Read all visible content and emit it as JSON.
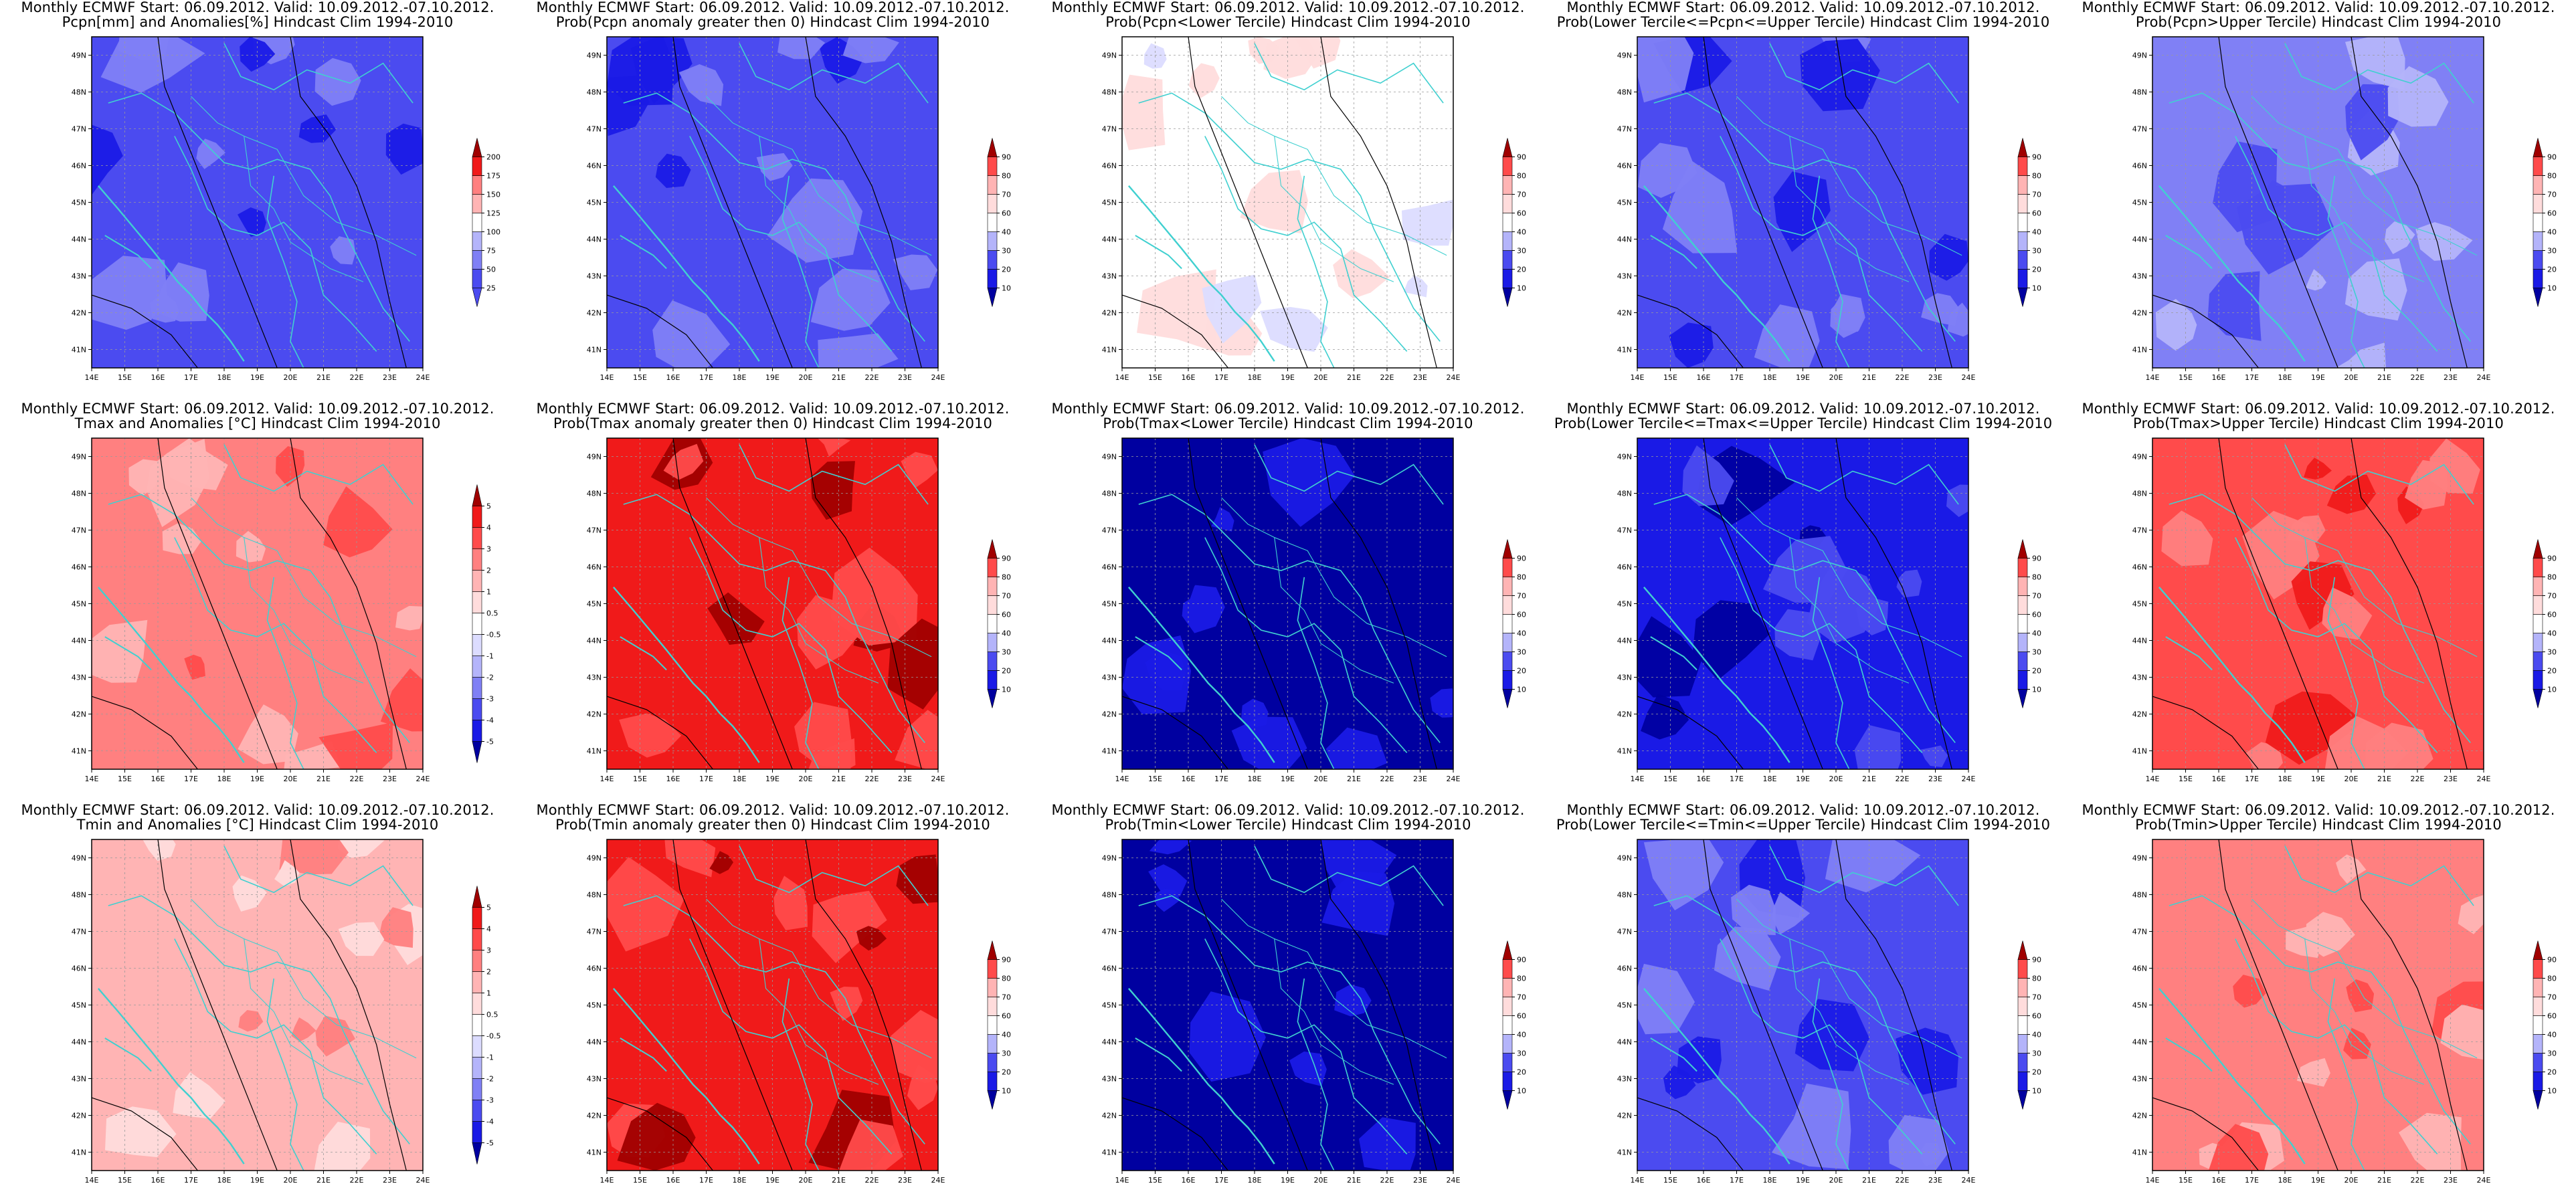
{
  "header": "Monthly ECMWF Start: 06.09.2012. Valid: 10.09.2012.-07.10.2012.",
  "lat_ticks": [
    "41N",
    "42N",
    "43N",
    "44N",
    "45N",
    "46N",
    "47N",
    "48N",
    "49N"
  ],
  "lon_ticks": [
    "14E",
    "15E",
    "16E",
    "17E",
    "18E",
    "19E",
    "20E",
    "21E",
    "22E",
    "23E",
    "24E"
  ],
  "colors": {
    "blue_scale": [
      "#0000a0",
      "#1a1ae6",
      "#4b4bf0",
      "#8080f5",
      "#b4b4fa",
      "#dcdcff",
      "#ffffff"
    ],
    "red_scale": [
      "#ffffff",
      "#ffdcdc",
      "#ffb4b4",
      "#ff8080",
      "#ff4b4b",
      "#f01a1a",
      "#a00000"
    ],
    "coast": "#40d0d0",
    "contour": "#000000"
  },
  "panels": [
    {
      "title": "Pcpn[mm] and Anomalies[%] Hindcast Clim 1994-2010",
      "scale": [
        "25",
        "50",
        "75",
        "100",
        "125",
        "150",
        "175",
        "200"
      ],
      "fill": "blue",
      "level": 4
    },
    {
      "title": "Prob(Pcpn anomaly greater then 0) Hindcast Clim 1994-2010",
      "scale": [
        "10",
        "20",
        "30",
        "40",
        "60",
        "70",
        "80",
        "90"
      ],
      "fill": "blue",
      "level": 4
    },
    {
      "title": "Prob(Pcpn<Lower Tercile) Hindcast Clim 1994-2010",
      "scale": [
        "10",
        "20",
        "30",
        "40",
        "60",
        "70",
        "80",
        "90"
      ],
      "fill": "white",
      "level": 0
    },
    {
      "title": "Prob(Lower Tercile<=Pcpn<=Upper Tercile) Hindcast Clim 1994-2010",
      "scale": [
        "10",
        "20",
        "30",
        "40",
        "60",
        "70",
        "80",
        "90"
      ],
      "fill": "blue",
      "level": 4
    },
    {
      "title": "Prob(Pcpn>Upper Tercile) Hindcast Clim 1994-2010",
      "scale": [
        "10",
        "20",
        "30",
        "40",
        "60",
        "70",
        "80",
        "90"
      ],
      "fill": "blue",
      "level": 3
    },
    {
      "title": "Tmax and Anomalies [°C] Hindcast Clim 1994-2010",
      "scale": [
        "-5",
        "-4",
        "-3",
        "-2",
        "-1",
        "-0.5",
        "0.5",
        "1",
        "2",
        "3",
        "4",
        "5"
      ],
      "fill": "red",
      "level": 3
    },
    {
      "title": "Prob(Tmax anomaly greater then 0) Hindcast Clim 1994-2010",
      "scale": [
        "10",
        "20",
        "30",
        "40",
        "60",
        "70",
        "80",
        "90"
      ],
      "fill": "red",
      "level": 5
    },
    {
      "title": "Prob(Tmax<Lower Tercile) Hindcast Clim 1994-2010",
      "scale": [
        "10",
        "20",
        "30",
        "40",
        "60",
        "70",
        "80",
        "90"
      ],
      "fill": "blue",
      "level": 6
    },
    {
      "title": "Prob(Lower Tercile<=Tmax<=Upper Tercile) Hindcast Clim 1994-2010",
      "scale": [
        "10",
        "20",
        "30",
        "40",
        "60",
        "70",
        "80",
        "90"
      ],
      "fill": "blue",
      "level": 5
    },
    {
      "title": "Prob(Tmax>Upper Tercile) Hindcast Clim 1994-2010",
      "scale": [
        "10",
        "20",
        "30",
        "40",
        "60",
        "70",
        "80",
        "90"
      ],
      "fill": "red",
      "level": 4
    },
    {
      "title": "Tmin and Anomalies [°C] Hindcast Clim 1994-2010",
      "scale": [
        "-5",
        "-4",
        "-3",
        "-2",
        "-1",
        "-0.5",
        "0.5",
        "1",
        "2",
        "3",
        "4",
        "5"
      ],
      "fill": "red",
      "level": 2
    },
    {
      "title": "Prob(Tmin anomaly greater then 0) Hindcast Clim 1994-2010",
      "scale": [
        "10",
        "20",
        "30",
        "40",
        "60",
        "70",
        "80",
        "90"
      ],
      "fill": "red",
      "level": 5
    },
    {
      "title": "Prob(Tmin<Lower Tercile) Hindcast Clim 1994-2010",
      "scale": [
        "10",
        "20",
        "30",
        "40",
        "60",
        "70",
        "80",
        "90"
      ],
      "fill": "blue",
      "level": 6
    },
    {
      "title": "Prob(Lower Tercile<=Tmin<=Upper Tercile) Hindcast Clim 1994-2010",
      "scale": [
        "10",
        "20",
        "30",
        "40",
        "60",
        "70",
        "80",
        "90"
      ],
      "fill": "blue",
      "level": 4
    },
    {
      "title": "Prob(Tmin>Upper Tercile) Hindcast Clim 1994-2010",
      "scale": [
        "10",
        "20",
        "30",
        "40",
        "60",
        "70",
        "80",
        "90"
      ],
      "fill": "red",
      "level": 3
    }
  ]
}
